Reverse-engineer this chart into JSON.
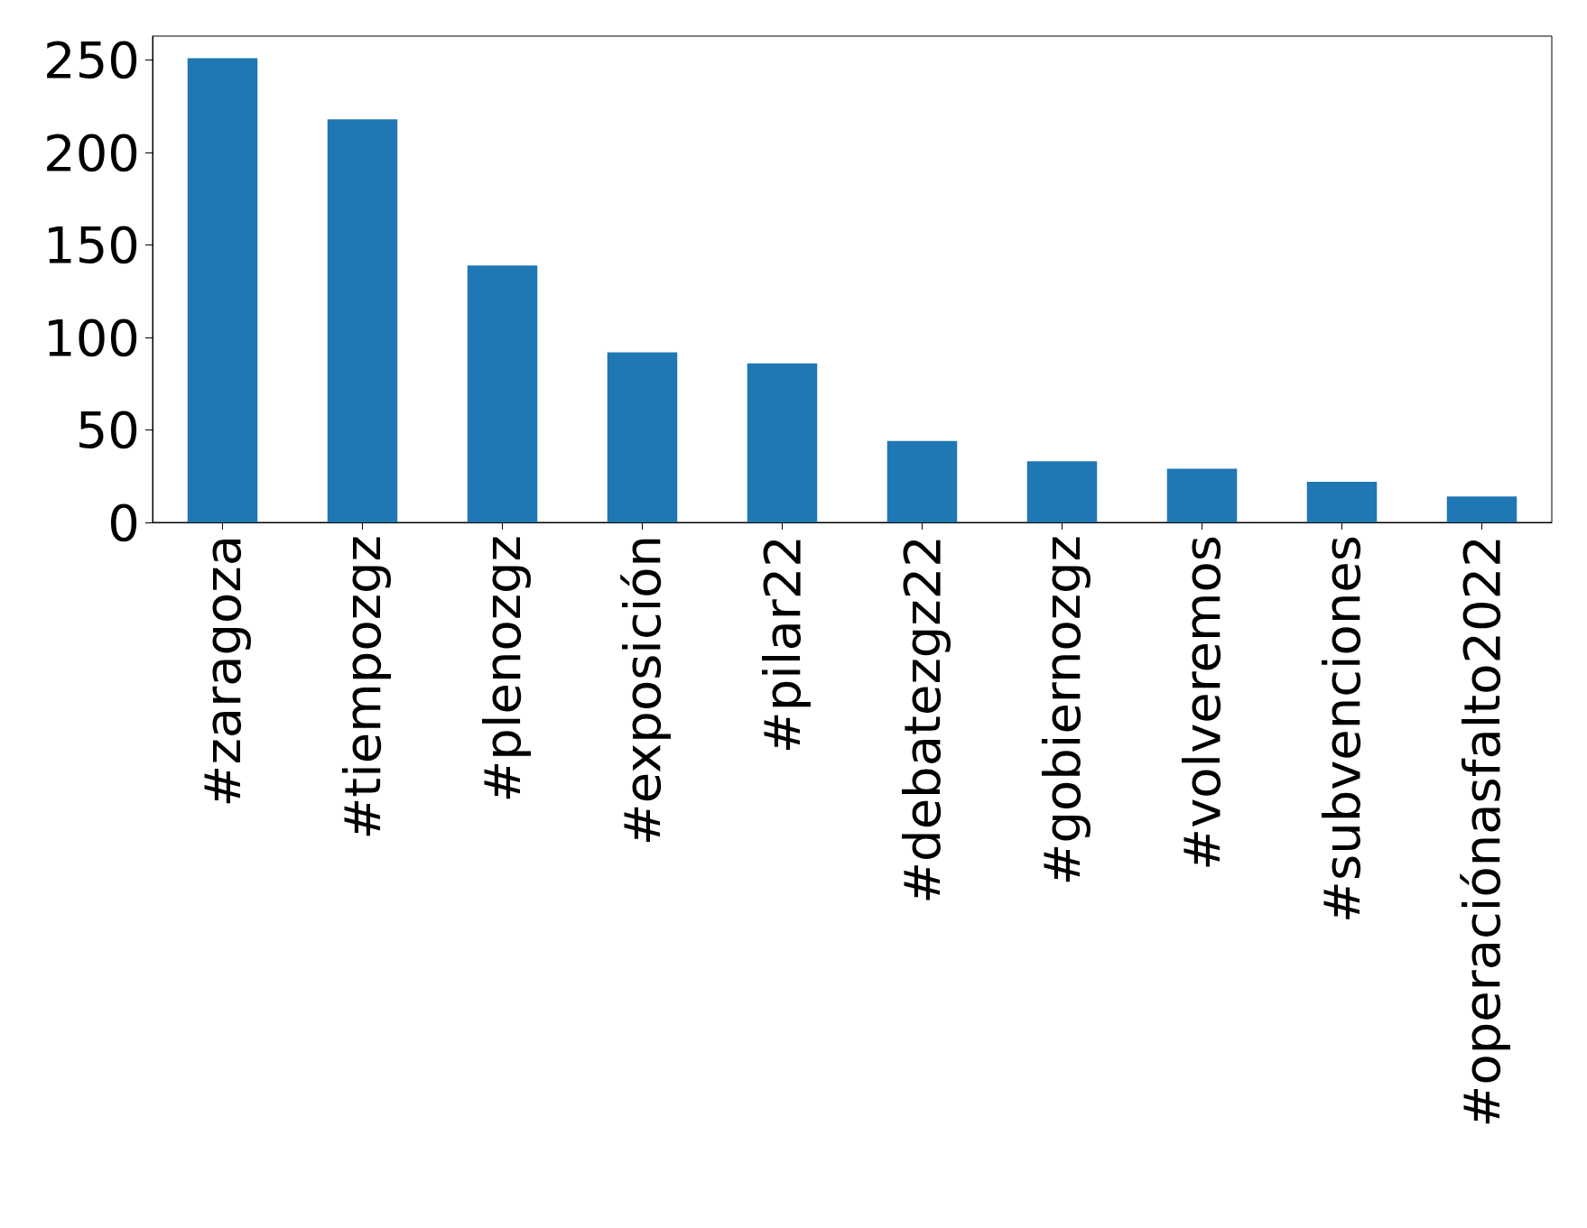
{
  "chart_data": {
    "type": "bar",
    "categories": [
      "#zaragoza",
      "#tiempozgz",
      "#plenozgz",
      "#exposición",
      "#pilar22",
      "#debatezgz22",
      "#gobiernozgz",
      "#volveremos",
      "#subvenciones",
      "#operaciónasfalto2022"
    ],
    "values": [
      251,
      218,
      139,
      92,
      86,
      44,
      33,
      29,
      22,
      14
    ],
    "color": "#1f77b4",
    "ylim": [
      0,
      263
    ],
    "yticks": [
      0,
      50,
      100,
      150,
      200,
      250
    ],
    "grid": false
  }
}
